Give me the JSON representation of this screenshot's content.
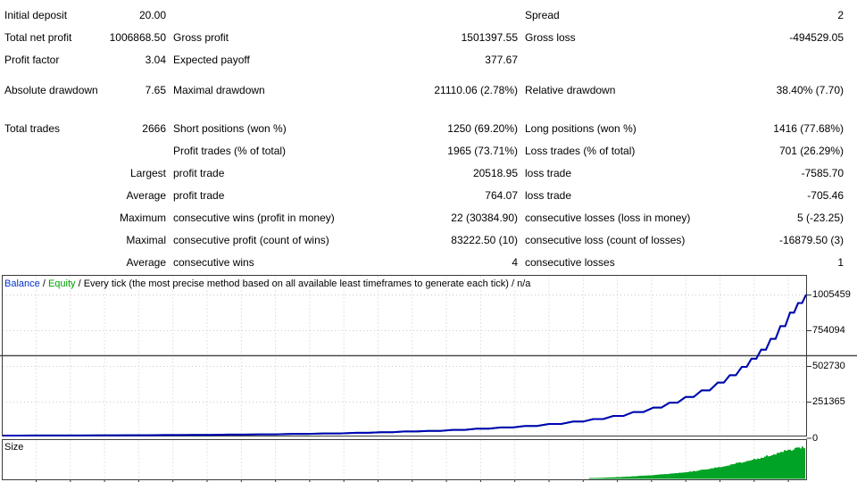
{
  "report": {
    "rows": [
      {
        "c1": "Initial deposit",
        "c2": "20.00",
        "c3": "",
        "c4": "",
        "c5": "Spread",
        "c6": "2"
      },
      {
        "c1": "Total net profit",
        "c2": "1006868.50",
        "c3": "Gross profit",
        "c4": "1501397.55",
        "c5": "Gross loss",
        "c6": "-494529.05"
      },
      {
        "c1": "Profit factor",
        "c2": "3.04",
        "c3": "Expected payoff",
        "c4": "377.67",
        "c5": "",
        "c6": ""
      },
      {
        "c1": "Absolute drawdown",
        "c2": "7.65",
        "c3": "Maximal drawdown",
        "c4": "21110.06 (2.78%)",
        "c5": "Relative drawdown",
        "c6": "38.40% (7.70)"
      },
      {
        "c1": "Total trades",
        "c2": "2666",
        "c3": "Short positions (won %)",
        "c4": "1250 (69.20%)",
        "c5": "Long positions (won %)",
        "c6": "1416 (77.68%)"
      },
      {
        "c1": "",
        "c2": "",
        "c3": "Profit trades (% of total)",
        "c4": "1965 (73.71%)",
        "c5": "Loss trades (% of total)",
        "c6": "701 (26.29%)"
      },
      {
        "c1": "",
        "c2": "Largest",
        "c3": "profit trade",
        "c4": "20518.95",
        "c5": "loss trade",
        "c6": "-7585.70"
      },
      {
        "c1": "",
        "c2": "Average",
        "c3": "profit trade",
        "c4": "764.07",
        "c5": "loss trade",
        "c6": "-705.46"
      },
      {
        "c1": "",
        "c2": "Maximum",
        "c3": "consecutive wins (profit in money)",
        "c4": "22 (30384.90)",
        "c5": "consecutive losses (loss in money)",
        "c6": "5 (-23.25)"
      },
      {
        "c1": "",
        "c2": "Maximal",
        "c3": "consecutive profit (count of wins)",
        "c4": "83222.50 (10)",
        "c5": "consecutive loss (count of losses)",
        "c6": "-16879.50 (3)"
      },
      {
        "c1": "",
        "c2": "Average",
        "c3": "consecutive wins",
        "c4": "4",
        "c5": "consecutive losses",
        "c6": "1"
      }
    ]
  },
  "graph": {
    "legend": {
      "balance": "Balance",
      "sep": " / ",
      "equity": "Equity",
      "method": "Every tick (the most precise method based on all available least timeframes to generate each tick) / n/a"
    },
    "y_labels": [
      "1005459",
      "754094",
      "502730",
      "251365",
      "0"
    ],
    "size_label": "Size",
    "colors": {
      "balance_line": "#0000bb",
      "equity_line": "#00a000",
      "size_bar": "#00a325",
      "grid": "#c9c9c9",
      "frame": "#3a3a3a",
      "midline": "#4a4a4a"
    }
  },
  "chart_data": [
    {
      "type": "line",
      "title": "Balance / Equity curve",
      "ylabel": "Balance",
      "ylim": [
        0,
        1005459
      ],
      "y_ticks": [
        0,
        251365,
        502730,
        754094,
        1005459
      ],
      "legend_position": "top-left",
      "grid": true,
      "series": [
        {
          "name": "Balance",
          "x_is_fraction_of_trades": true,
          "points": [
            [
              0.0,
              20
            ],
            [
              0.04,
              400
            ],
            [
              0.08,
              900
            ],
            [
              0.12,
              1600
            ],
            [
              0.16,
              2500
            ],
            [
              0.2,
              3800
            ],
            [
              0.24,
              5200
            ],
            [
              0.28,
              7000
            ],
            [
              0.32,
              9200
            ],
            [
              0.36,
              12000
            ],
            [
              0.4,
              15500
            ],
            [
              0.44,
              20000
            ],
            [
              0.47,
              24000
            ],
            [
              0.5,
              29000
            ],
            [
              0.53,
              34000
            ],
            [
              0.56,
              41000
            ],
            [
              0.59,
              49000
            ],
            [
              0.62,
              58000
            ],
            [
              0.65,
              69000
            ],
            [
              0.68,
              83000
            ],
            [
              0.71,
              100000
            ],
            [
              0.735,
              118000
            ],
            [
              0.76,
              140000
            ],
            [
              0.785,
              168000
            ],
            [
              0.81,
              200000
            ],
            [
              0.83,
              235000
            ],
            [
              0.85,
              275000
            ],
            [
              0.87,
              322000
            ],
            [
              0.89,
              378000
            ],
            [
              0.905,
              430000
            ],
            [
              0.92,
              490000
            ],
            [
              0.932,
              548000
            ],
            [
              0.944,
              612000
            ],
            [
              0.956,
              690000
            ],
            [
              0.968,
              780000
            ],
            [
              0.98,
              876000
            ],
            [
              0.99,
              945000
            ],
            [
              1.0,
              1005459
            ]
          ]
        },
        {
          "name": "Equity",
          "coincides_with": "Balance"
        }
      ]
    },
    {
      "type": "bar",
      "title": "Size",
      "series": [
        {
          "name": "Size",
          "values_are_relative": true,
          "points": [
            [
              0.73,
              0.02
            ],
            [
              0.75,
              0.04
            ],
            [
              0.77,
              0.06
            ],
            [
              0.79,
              0.09
            ],
            [
              0.81,
              0.12
            ],
            [
              0.83,
              0.16
            ],
            [
              0.85,
              0.21
            ],
            [
              0.865,
              0.26
            ],
            [
              0.88,
              0.32
            ],
            [
              0.895,
              0.39
            ],
            [
              0.91,
              0.47
            ],
            [
              0.925,
              0.55
            ],
            [
              0.94,
              0.64
            ],
            [
              0.955,
              0.74
            ],
            [
              0.97,
              0.85
            ],
            [
              0.985,
              0.93
            ],
            [
              1.0,
              1.0
            ]
          ]
        }
      ]
    }
  ]
}
